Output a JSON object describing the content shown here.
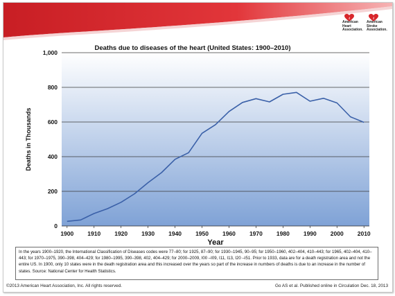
{
  "logo": {
    "aha_text": "American Heart Association.",
    "asa_text": "American Stroke Association."
  },
  "footer": {
    "copyright": "©2013  American  Heart Association,  Inc.  All rights  reserved.",
    "citation": "Go AS et al. Published  online  in Circulation  Dec. 18, 2013"
  },
  "caption": {
    "text": "In the years 1900–1920, the International Classification of Diseases codes were 77–80; for 1925, 87–90; for 1930–1945, 90–95; for 1950–1960, 402–404, 410–443; for 1965, 402–404, 410–443; for 1970–1975, 390–398, 404–429; for 1980–1995, 390–398, 402, 404–429; for 2000–2009, I00 –I09, I11, I13, I20 –I51.  Prior to 1933, data are for a death registration area and not the entire US.  In 1900, only 10 states were in the death registration area and this increased over the years so part of the increase in numbers of deaths is due to an increase in the number of states. Source: National Center for Health Statistics."
  },
  "colors": {
    "line": "#3a60a8",
    "plot_top": "#ffffff",
    "plot_bottom": "#7fa2d6",
    "banner_red": "#d8262b"
  },
  "chart_data": {
    "type": "line",
    "title": "Deaths due to diseases of the heart (United States: 1900–2010)",
    "xlabel": "Year",
    "ylabel": "Deaths in Thousands",
    "xlim": [
      1898,
      2012
    ],
    "ylim": [
      0,
      1000
    ],
    "x_ticks": [
      "1900",
      "1910",
      "1920",
      "1930",
      "1940",
      "1950",
      "1960",
      "1970",
      "1980",
      "1990",
      "2000",
      "2010"
    ],
    "x_tick_values": [
      1900,
      1910,
      1920,
      1930,
      1940,
      1950,
      1960,
      1970,
      1980,
      1990,
      2000,
      2010
    ],
    "y_ticks": [
      "0",
      "200",
      "400",
      "600",
      "800",
      "1,000"
    ],
    "y_tick_values": [
      0,
      200,
      400,
      600,
      800,
      1000
    ],
    "grid": true,
    "legend": "none",
    "series": [
      {
        "x": [
          1900,
          1905,
          1910,
          1915,
          1920,
          1925,
          1930,
          1935,
          1940,
          1945,
          1950,
          1955,
          1960,
          1965,
          1970,
          1975,
          1980,
          1985,
          1990,
          1995,
          2000,
          2005,
          2010
        ],
        "values": [
          27,
          35,
          72,
          100,
          137,
          186,
          250,
          308,
          385,
          423,
          535,
          585,
          661,
          713,
          735,
          716,
          760,
          771,
          720,
          737,
          710,
          630,
          598
        ]
      }
    ]
  }
}
